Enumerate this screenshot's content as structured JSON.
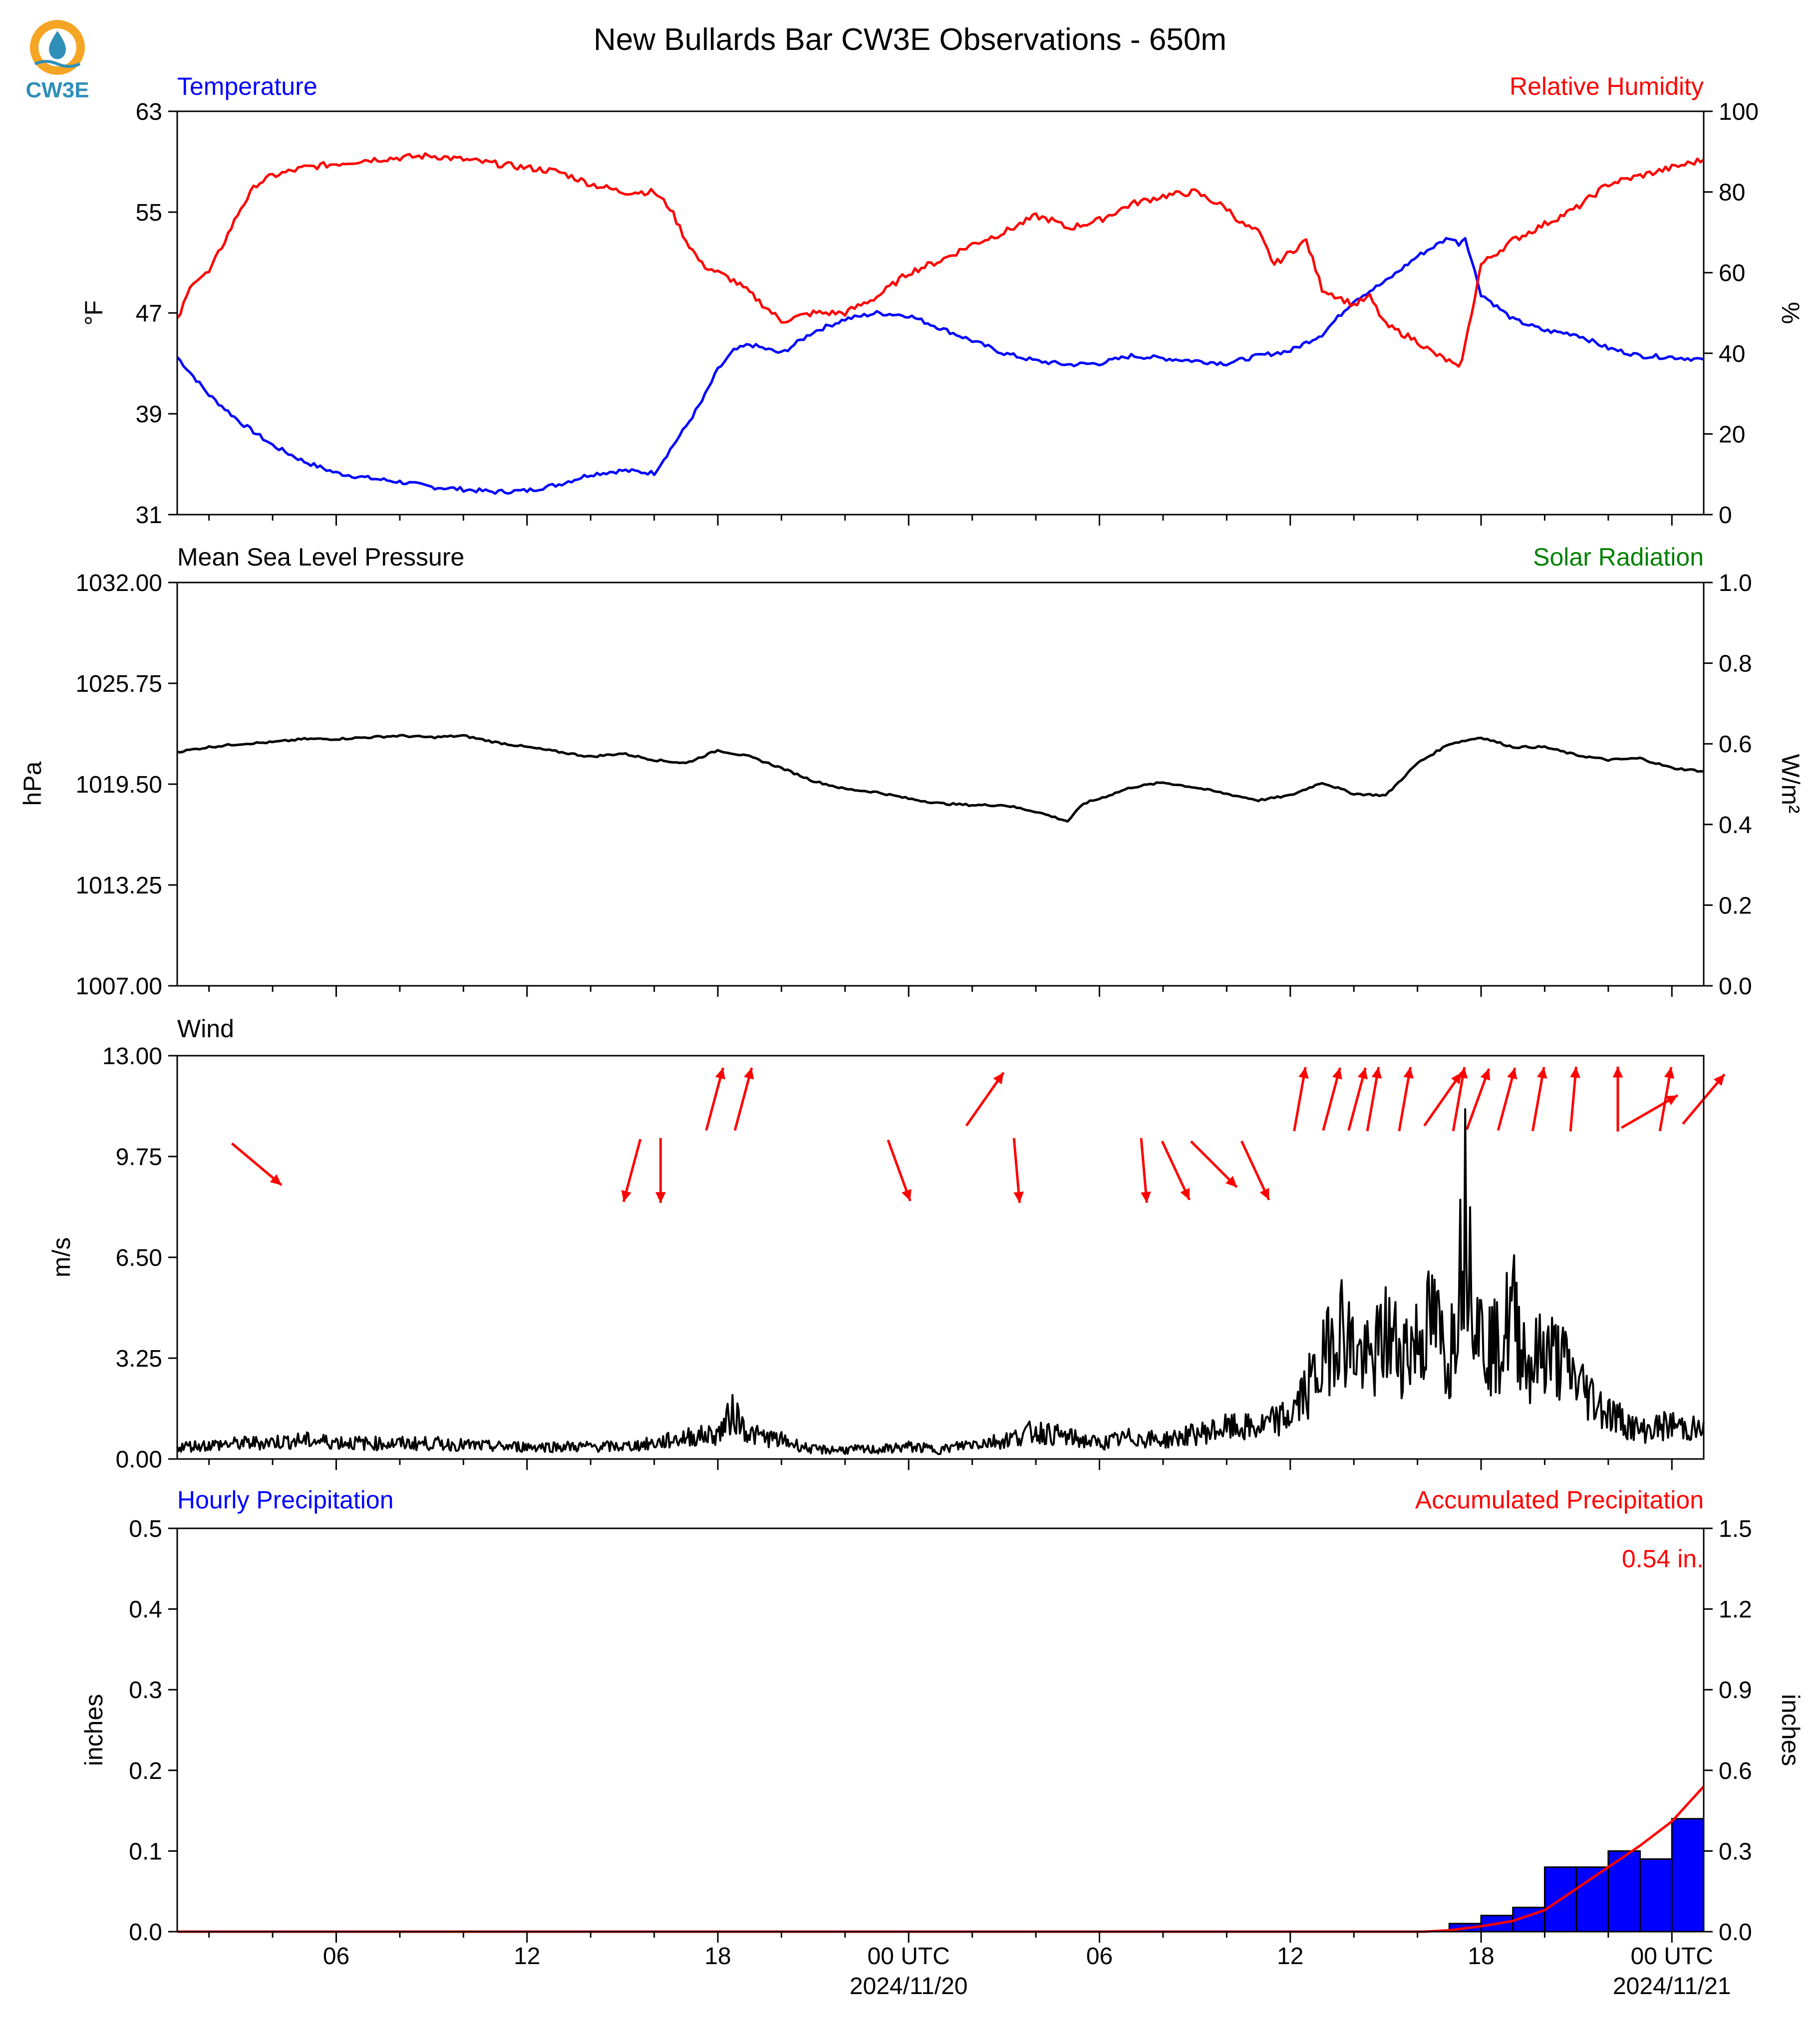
{
  "title": "New Bullards Bar CW3E Observations - 650m",
  "logo": {
    "text": "CW3E",
    "colors": {
      "ring": "#f5a524",
      "drop": "#2f8fb8",
      "text": "#2f8fb8"
    }
  },
  "colors": {
    "blue": "#0000ff",
    "red": "#ff0000",
    "green": "#008000",
    "black": "#000000",
    "bar_fill": "#0000ff"
  },
  "x_axis": {
    "range_hours": [
      -29.0,
      19.0
    ],
    "ticks": [
      {
        "h": -24,
        "label": "06"
      },
      {
        "h": -18,
        "label": "12"
      },
      {
        "h": -12,
        "label": "18"
      },
      {
        "h": -6,
        "label": "00 UTC",
        "sublabel": "2024/11/20"
      },
      {
        "h": 0,
        "label": "06"
      },
      {
        "h": 6,
        "label": "12"
      },
      {
        "h": 12,
        "label": "18"
      },
      {
        "h": 18,
        "label": "00 UTC",
        "sublabel": "2024/11/21"
      }
    ],
    "minor_step_hours": 2
  },
  "panels": {
    "temp_rh": {
      "left_title": "Temperature",
      "right_title": "Relative Humidity",
      "left_ylabel": "°F",
      "right_ylabel": "%",
      "left_ticks": [
        "31",
        "39",
        "47",
        "55",
        "63"
      ],
      "right_ticks": [
        "0",
        "20",
        "40",
        "60",
        "80",
        "100"
      ]
    },
    "pressure": {
      "left_title": "Mean Sea Level Pressure",
      "right_title": "Solar Radiation",
      "left_ylabel": "hPa",
      "right_ylabel": "W/m²",
      "left_ticks": [
        "1007.00",
        "1013.25",
        "1019.50",
        "1025.75",
        "1032.00"
      ],
      "right_ticks": [
        "0.0",
        "0.2",
        "0.4",
        "0.6",
        "0.8",
        "1.0"
      ]
    },
    "wind": {
      "left_title": "Wind",
      "left_ylabel": "m/s",
      "left_ticks": [
        "0.00",
        "3.25",
        "6.50",
        "9.75",
        "13.00"
      ]
    },
    "precip": {
      "left_title": "Hourly Precipitation",
      "right_title": "Accumulated Precipitation",
      "left_ylabel": "inches",
      "right_ylabel": "inches",
      "left_ticks": [
        "0.0",
        "0.1",
        "0.2",
        "0.3",
        "0.4",
        "0.5"
      ],
      "right_ticks": [
        "0.0",
        "0.3",
        "0.6",
        "0.9",
        "1.2",
        "1.5"
      ],
      "total_label": "0.54 in."
    }
  },
  "chart_data": [
    {
      "type": "line",
      "title": "Temperature / Relative Humidity",
      "x_unit": "hours relative to 2024-11-20 06 UTC",
      "ylim_left": [
        31,
        63
      ],
      "ylim_right": [
        0,
        100
      ],
      "series": [
        {
          "name": "Temperature",
          "axis": "left",
          "color": "#0000ff",
          "x": [
            -29,
            -28,
            -27,
            -26,
            -25,
            -24,
            -23,
            -22,
            -21,
            -20,
            -19,
            -18,
            -17,
            -16,
            -15,
            -14,
            -13,
            -12.5,
            -12,
            -11.5,
            -11,
            -10,
            -9,
            -8,
            -7,
            -6,
            -5,
            -4,
            -3,
            -2,
            -1,
            0,
            1,
            2,
            3,
            4,
            4.5,
            5,
            6,
            7,
            8,
            9,
            10,
            11,
            11.3,
            11.5,
            12,
            13,
            14,
            15,
            16,
            17,
            18,
            19
          ],
          "y": [
            43.5,
            40.5,
            38.3,
            36.5,
            35.2,
            34.3,
            33.9,
            33.6,
            33.2,
            33.0,
            32.8,
            32.9,
            33.4,
            34.2,
            34.5,
            34.3,
            38.0,
            40.0,
            42.5,
            44.0,
            44.5,
            43.8,
            45.5,
            46.5,
            47.0,
            46.8,
            45.8,
            44.8,
            43.8,
            43.2,
            42.9,
            43.0,
            43.6,
            43.4,
            43.2,
            43.0,
            43.3,
            43.6,
            44.0,
            45.3,
            48.0,
            49.5,
            51.5,
            53.0,
            52.5,
            53.0,
            48.5,
            46.5,
            45.6,
            45.3,
            44.2,
            43.6,
            43.5,
            43.3
          ]
        },
        {
          "name": "Relative Humidity",
          "axis": "right",
          "color": "#ff0000",
          "x": [
            -29,
            -28.5,
            -28,
            -27.5,
            -27,
            -26.5,
            -26,
            -25,
            -24,
            -23,
            -22,
            -21,
            -20,
            -19,
            -18,
            -17,
            -16,
            -15,
            -14,
            -13.5,
            -13,
            -12.5,
            -12,
            -11.5,
            -11,
            -10,
            -9,
            -8,
            -7,
            -6,
            -5,
            -4,
            -3,
            -2,
            -1.5,
            -1,
            0,
            1,
            2,
            3,
            3.5,
            4,
            4.5,
            5,
            5.5,
            6,
            6.5,
            7,
            8,
            8.5,
            9,
            10,
            10.5,
            11,
            11.3,
            11.5,
            12,
            13,
            14,
            15,
            16,
            17,
            18,
            19
          ],
          "y": [
            48,
            58,
            60,
            68,
            76,
            82,
            84,
            86,
            87,
            88,
            88.5,
            89,
            88,
            87,
            86,
            85,
            82,
            80,
            80,
            76,
            68,
            62,
            60,
            58,
            55,
            48,
            50,
            50,
            54,
            60,
            63,
            67,
            70,
            74,
            73,
            71,
            73,
            77,
            79,
            80,
            78,
            76,
            72,
            70,
            62,
            65,
            68,
            56,
            52,
            54,
            47,
            43,
            40,
            38,
            36,
            42,
            62,
            68,
            72,
            76,
            82,
            84,
            86,
            88
          ]
        }
      ]
    },
    {
      "type": "line",
      "title": "Mean Sea Level Pressure",
      "x_unit": "hours relative to 2024-11-20 06 UTC",
      "ylim_left": [
        1007,
        1032
      ],
      "ylim_right": [
        0,
        1
      ],
      "series": [
        {
          "name": "Mean Sea Level Pressure",
          "axis": "left",
          "color": "#000000",
          "x": [
            -29,
            -28,
            -27,
            -26,
            -25,
            -24,
            -23,
            -22,
            -21,
            -20,
            -19,
            -18,
            -17,
            -16,
            -15,
            -14,
            -13,
            -12,
            -11,
            -10,
            -9,
            -8,
            -7,
            -6,
            -5,
            -4,
            -3,
            -2,
            -1,
            -0.5,
            0,
            1,
            2,
            3,
            4,
            5,
            6,
            7,
            8,
            9,
            10,
            11,
            12,
            13,
            14,
            15,
            16,
            17,
            18,
            19
          ],
          "y": [
            1021.5,
            1021.8,
            1022.0,
            1022.1,
            1022.3,
            1022.3,
            1022.4,
            1022.5,
            1022.4,
            1022.5,
            1022.1,
            1021.8,
            1021.5,
            1021.2,
            1021.4,
            1021.0,
            1020.8,
            1021.6,
            1021.2,
            1020.5,
            1019.7,
            1019.2,
            1019.0,
            1018.6,
            1018.3,
            1018.2,
            1018.2,
            1017.8,
            1017.2,
            1018.3,
            1018.6,
            1019.3,
            1019.6,
            1019.3,
            1018.9,
            1018.5,
            1018.8,
            1019.6,
            1018.9,
            1018.8,
            1020.8,
            1022.0,
            1022.4,
            1021.8,
            1021.8,
            1021.3,
            1021.0,
            1021.1,
            1020.5,
            1020.3
          ]
        }
      ]
    },
    {
      "type": "line",
      "title": "Wind",
      "x_unit": "hours relative to 2024-11-20 06 UTC",
      "ylim": [
        0,
        13
      ],
      "series": [
        {
          "name": "Wind speed",
          "color": "#000000",
          "x": [
            -29,
            -27,
            -25,
            -23,
            -21,
            -19,
            -17,
            -15,
            -14,
            -13,
            -12,
            -11.5,
            -11,
            -10,
            -9,
            -8,
            -7,
            -6,
            -5,
            -4,
            -3,
            -2,
            -1,
            0,
            1,
            2,
            3,
            4,
            5,
            6,
            7,
            7.5,
            8,
            8.5,
            9,
            9.5,
            10,
            10.5,
            11,
            11.5,
            12,
            12.5,
            13,
            13.5,
            14,
            14.5,
            15,
            16,
            17,
            18,
            19
          ],
          "y": [
            0.4,
            0.5,
            0.6,
            0.5,
            0.5,
            0.4,
            0.4,
            0.4,
            0.5,
            0.7,
            0.8,
            1.5,
            0.8,
            0.6,
            0.3,
            0.3,
            0.3,
            0.4,
            0.3,
            0.5,
            0.6,
            0.9,
            0.7,
            0.5,
            0.7,
            0.6,
            0.8,
            1.0,
            1.0,
            1.4,
            3.0,
            4.5,
            3.5,
            3.0,
            4.0,
            3.5,
            3.8,
            4.5,
            3.0,
            8.0,
            4.0,
            3.5,
            4.8,
            3.0,
            3.5,
            3.2,
            2.5,
            1.5,
            0.9,
            1.1,
            0.9
          ]
        }
      ],
      "direction_arrows_note": "red arrows indicate wind direction"
    },
    {
      "type": "bar",
      "title": "Hourly / Accumulated Precipitation",
      "x_unit": "hours relative to 2024-11-20 06 UTC",
      "ylim_left": [
        0,
        0.5
      ],
      "ylim_right": [
        0,
        1.5
      ],
      "series": [
        {
          "name": "Hourly Precipitation",
          "axis": "left",
          "color": "#0000ff",
          "x": [
            11,
            12,
            13,
            14,
            15,
            16,
            17,
            18
          ],
          "values": [
            0.01,
            0.02,
            0.03,
            0.08,
            0.08,
            0.1,
            0.09,
            0.14
          ]
        },
        {
          "name": "Accumulated Precipitation",
          "axis": "right",
          "color": "#ff0000",
          "x": [
            -29,
            10.2,
            11,
            12,
            13,
            14,
            15,
            16,
            17,
            18,
            19
          ],
          "y": [
            0,
            0,
            0.005,
            0.02,
            0.04,
            0.08,
            0.16,
            0.24,
            0.32,
            0.41,
            0.54
          ]
        }
      ]
    }
  ]
}
